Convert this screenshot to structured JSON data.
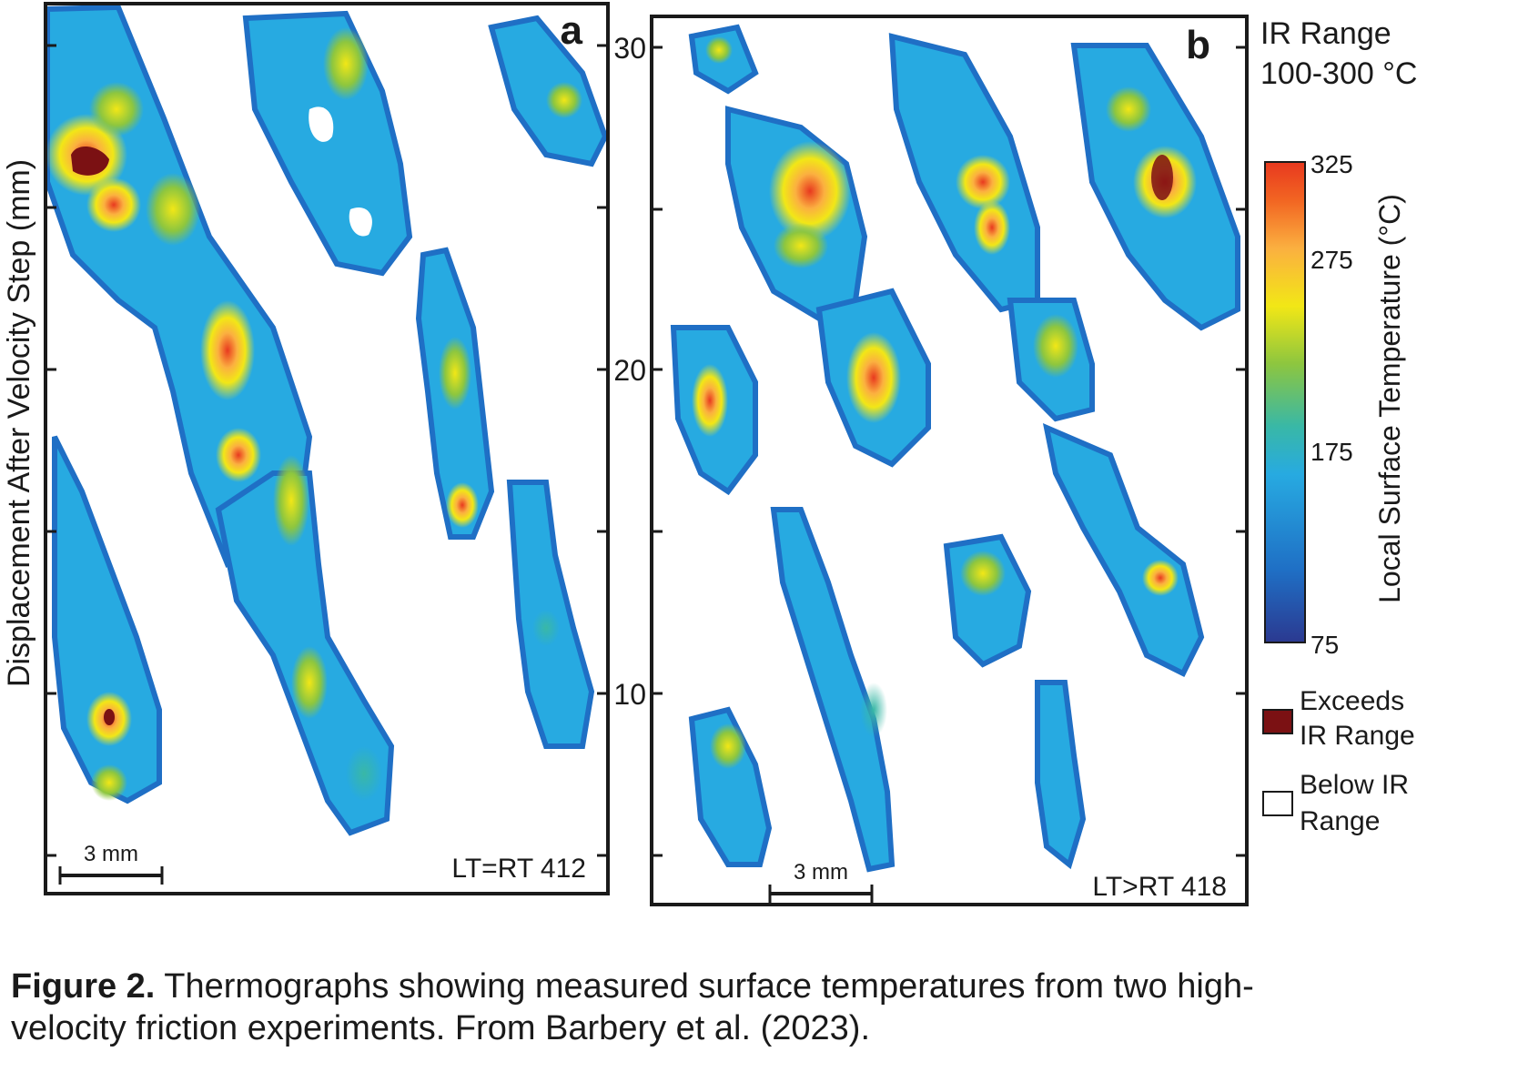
{
  "panel_a": {
    "letter": "a",
    "experiment_label": "LT=RT 412",
    "scale_bar": "3 mm"
  },
  "panel_b": {
    "letter": "b",
    "experiment_label": "LT>RT 418",
    "scale_bar": "3 mm"
  },
  "y_axis": {
    "label": "Displacement After Velocity Step (mm)",
    "ticks": [
      "30",
      "20",
      "10"
    ]
  },
  "ir_range": {
    "line1": "IR Range",
    "line2": "100-300 °C"
  },
  "colorbar": {
    "label": "Local Surface Temperature (°C)",
    "ticks": [
      "325",
      "275",
      "175",
      "75"
    ],
    "colors": [
      "#2b3990",
      "#1f6fc5",
      "#27aae1",
      "#39b8a6",
      "#8dc63f",
      "#f2e716",
      "#fbb040",
      "#f26522",
      "#e8391f"
    ]
  },
  "legend": {
    "exceeds_line1": "Exceeds",
    "exceeds_line2": "IR Range",
    "exceeds_color": "#7b1113",
    "below_line1": "Below IR",
    "below_line2": "Range"
  },
  "caption": {
    "bold": "Figure 2.",
    "line1": " Thermographs showing measured surface temperatures from two high-",
    "line2": "velocity friction experiments. From Barbery et al. (2023)."
  }
}
